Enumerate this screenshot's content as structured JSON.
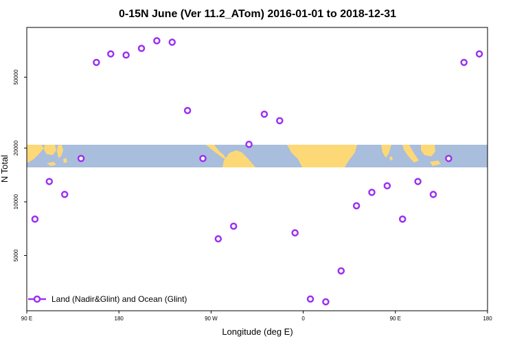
{
  "chart_data": {
    "type": "scatter",
    "title": "0-15N June (Ver 11.2_ATom)   2016-01-01 to 2018-12-31",
    "xlabel": "Longitude (deg E)",
    "ylabel": "N Total",
    "y_scale": "log",
    "xlim": [
      90,
      540
    ],
    "ylim": [
      2450,
      95000
    ],
    "x_ticks": [
      {
        "value": 90,
        "label": "90 E"
      },
      {
        "value": 180,
        "label": "180"
      },
      {
        "value": 270,
        "label": "90 W"
      },
      {
        "value": 360,
        "label": "0"
      },
      {
        "value": 450,
        "label": "90 E"
      },
      {
        "value": 540,
        "label": "180"
      }
    ],
    "y_ticks": [
      {
        "value": 5000,
        "label": "5000"
      },
      {
        "value": 10000,
        "label": "10000"
      },
      {
        "value": 20000,
        "label": "20000"
      },
      {
        "value": 50000,
        "label": "50000"
      }
    ],
    "grid": false,
    "legend": {
      "position": "bottom-left",
      "entries": [
        "Land (Nadir&Glint) and Ocean (Glint)"
      ]
    },
    "series": [
      {
        "name": "Land (Nadir&Glint) and Ocean (Glint)",
        "color": "#9b30f0",
        "marker": "open-circle",
        "points": [
          {
            "x": 98,
            "y": 8000
          },
          {
            "x": 112,
            "y": 13000
          },
          {
            "x": 127,
            "y": 11000
          },
          {
            "x": 143,
            "y": 17500
          },
          {
            "x": 158,
            "y": 60500
          },
          {
            "x": 172,
            "y": 67500
          },
          {
            "x": 187,
            "y": 66500
          },
          {
            "x": 202,
            "y": 72500
          },
          {
            "x": 217,
            "y": 80000
          },
          {
            "x": 232,
            "y": 78500
          },
          {
            "x": 247,
            "y": 32500
          },
          {
            "x": 262,
            "y": 17500
          },
          {
            "x": 277,
            "y": 6200
          },
          {
            "x": 292,
            "y": 7300
          },
          {
            "x": 307,
            "y": 21000
          },
          {
            "x": 322,
            "y": 31000
          },
          {
            "x": 337,
            "y": 28500
          },
          {
            "x": 352,
            "y": 6700
          },
          {
            "x": 367,
            "y": 2850
          },
          {
            "x": 382,
            "y": 2750
          },
          {
            "x": 397,
            "y": 4100
          },
          {
            "x": 412,
            "y": 9500
          },
          {
            "x": 427,
            "y": 11300
          },
          {
            "x": 442,
            "y": 12300
          },
          {
            "x": 457,
            "y": 8000
          },
          {
            "x": 472,
            "y": 13000
          },
          {
            "x": 487,
            "y": 11000
          },
          {
            "x": 502,
            "y": 17500
          },
          {
            "x": 517,
            "y": 60500
          },
          {
            "x": 532,
            "y": 67500
          }
        ]
      }
    ]
  }
}
